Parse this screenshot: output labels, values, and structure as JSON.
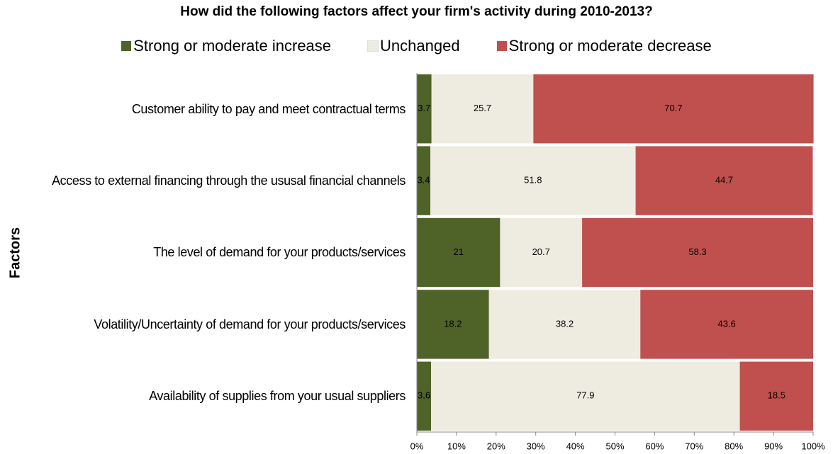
{
  "chart_data": {
    "type": "stacked_barh",
    "title": "How did the following factors affect your firm's activity during 2010-2013?",
    "y_label": "Factors",
    "categories": [
      "Customer ability to pay and meet contractual terms",
      "Access to external financing through the ususal financial channels",
      "The level of demand for your products/services",
      "Volatility/Uncertainty of demand for your products/services",
      "Availability of supplies from your usual suppliers"
    ],
    "series": [
      {
        "name": "Strong or moderate increase",
        "color": "#4f6228",
        "values": [
          3.7,
          3.4,
          21,
          18.2,
          3.6
        ]
      },
      {
        "name": "Unchanged",
        "color": "#eeece1",
        "values": [
          25.7,
          51.8,
          20.7,
          38.2,
          77.9
        ]
      },
      {
        "name": "Strong or moderate decrease",
        "color": "#c0504d",
        "values": [
          70.7,
          44.7,
          58.3,
          43.6,
          18.5
        ]
      }
    ],
    "xlim": [
      0,
      100
    ],
    "xticks": [
      {
        "value": 0,
        "label": "0%"
      },
      {
        "value": 10,
        "label": "10%"
      },
      {
        "value": 20,
        "label": "20%"
      },
      {
        "value": 30,
        "label": "30%"
      },
      {
        "value": 40,
        "label": "40%"
      },
      {
        "value": 50,
        "label": "50%"
      },
      {
        "value": 60,
        "label": "60%"
      },
      {
        "value": 70,
        "label": "70%"
      },
      {
        "value": 80,
        "label": "80%"
      },
      {
        "value": 90,
        "label": "90%"
      },
      {
        "value": 100,
        "label": "100%"
      }
    ],
    "legend": "top"
  }
}
